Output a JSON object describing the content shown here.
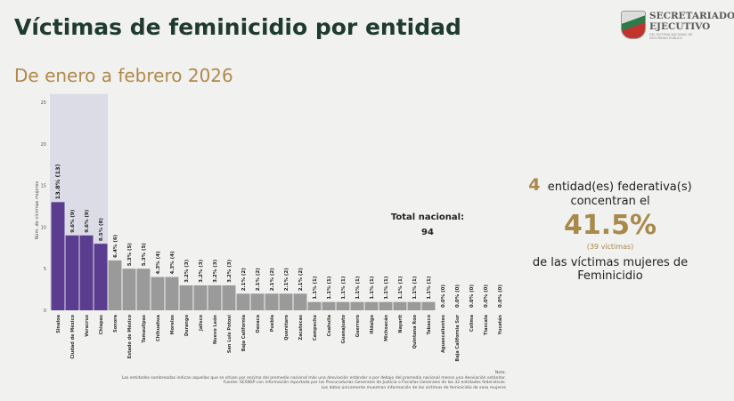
{
  "header": {
    "title": "Víctimas de feminicidio por entidad",
    "subtitle": "De enero a febrero 2026"
  },
  "logo": {
    "line1": "SECRETARIADO",
    "line2": "EJECUTIVO",
    "line3": "DEL SISTEMA NACIONAL DE SEGURIDAD PÚBLICA"
  },
  "total": {
    "label": "Total nacional:",
    "value": "94"
  },
  "summary": {
    "count": "4",
    "text1": "entidad(es)   federativa(s)",
    "text2": "concentran el",
    "percent": "41.5%",
    "victims": "(39  víctimas)",
    "text3": "de las  víctimas  mujeres de",
    "text4": "Feminicidio"
  },
  "notes": {
    "title": "Nota:",
    "line1": "Las entidades sombreadas indican aquellas que se sitúan por encima del promedio nacional más una desviación estándar o por debajo del promedio nacional menos una desviación estándar.",
    "line2": "Fuente: SESNSP con información reportada por las Procuradurías Generales de Justicia o Fiscalías Generales de las 32 entidades federativas.",
    "line3": "Los datos únicamente muestran información de las víctimas de feminicidio de sexo mujeres"
  },
  "chart_data": {
    "type": "bar",
    "ylabel": "Núm. de víctimas mujeres",
    "ylim": [
      0,
      25
    ],
    "yticks": [
      0,
      5,
      10,
      15,
      20,
      25
    ],
    "grid": false,
    "colors": {
      "highlight": "#5b3d8f",
      "normal": "#9a9a9a",
      "shade": "#dcdce6"
    },
    "categories": [
      "Sinaloa",
      "Ciudad de México",
      "Veracruz",
      "Chiapas",
      "Sonora",
      "Estado de México",
      "Tamaulipas",
      "Chihuahua",
      "Morelos",
      "Durango",
      "Jalisco",
      "Nuevo León",
      "San Luis Potosí",
      "Baja California",
      "Oaxaca",
      "Puebla",
      "Querétaro",
      "Zacatecas",
      "Campeche",
      "Coahuila",
      "Guanajuato",
      "Guerrero",
      "Hidalgo",
      "Michoacán",
      "Nayarit",
      "Quintana Roo",
      "Tabasco",
      "Aguascalientes",
      "Baja California Sur",
      "Colima",
      "Tlaxcala",
      "Yucatán"
    ],
    "values": [
      13,
      9,
      9,
      8,
      6,
      5,
      5,
      4,
      4,
      3,
      3,
      3,
      3,
      2,
      2,
      2,
      2,
      2,
      1,
      1,
      1,
      1,
      1,
      1,
      1,
      1,
      1,
      0,
      0,
      0,
      0,
      0
    ],
    "labels": [
      "13.8% (13)",
      "9.6% (9)",
      "9.6% (9)",
      "8.5% (8)",
      "6.4% (6)",
      "5.3% (5)",
      "5.3% (5)",
      "4.3% (4)",
      "4.3% (4)",
      "3.2% (3)",
      "3.2% (3)",
      "3.2% (3)",
      "3.2% (3)",
      "2.1% (2)",
      "2.1% (2)",
      "2.1% (2)",
      "2.1% (2)",
      "2.1% (2)",
      "1.1% (1)",
      "1.1% (1)",
      "1.1% (1)",
      "1.1% (1)",
      "1.1% (1)",
      "1.1% (1)",
      "1.1% (1)",
      "1.1% (1)",
      "1.1% (1)",
      "0.0% (0)",
      "0.0% (0)",
      "0.0% (0)",
      "0.0% (0)",
      "0.0% (0)"
    ],
    "highlighted": [
      "Sinaloa",
      "Ciudad de México",
      "Veracruz",
      "Chiapas"
    ]
  }
}
